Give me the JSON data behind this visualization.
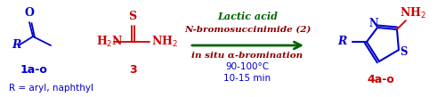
{
  "bg_color": "#ffffff",
  "fig_width": 5.0,
  "fig_height": 1.09,
  "dpi": 100,
  "blue": "#0000cc",
  "red": "#cc0000",
  "green": "#006400",
  "dark_red": "#8b0000",
  "black": "#000000",
  "texts": {
    "label1": "1a-o",
    "label3": "3",
    "label4": "4a-o",
    "r_note": "R = aryl, naphthyl",
    "lactic_acid": "Lactic acid",
    "nbs": "N-bromosuccinimide (2)",
    "in_situ": "in situ α-bromination",
    "temp": "90-100°C",
    "time": "10-15 min"
  }
}
